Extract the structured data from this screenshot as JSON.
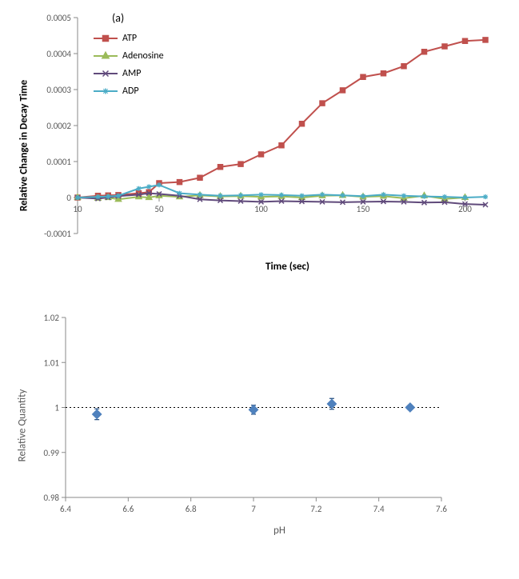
{
  "chart_a": {
    "type": "line",
    "panel_label": "(a)",
    "ylabel": "Relative Change in Decay Time",
    "xlabel": "Time (sec)",
    "label_fontsize": 13,
    "label_fontweight": "bold",
    "xlim": [
      10,
      210
    ],
    "ylim": [
      -0.0001,
      0.0005
    ],
    "xticks": [
      10,
      50,
      100,
      150,
      200
    ],
    "yticks": [
      -0.0001,
      0,
      0.0001,
      0.0002,
      0.0003,
      0.0004,
      0.0005
    ],
    "background_color": "#ffffff",
    "axis_color": "#8a8a8a",
    "text_color": "#595959",
    "tick_fontsize": 11,
    "line_width": 2,
    "marker_size": 6,
    "series": [
      {
        "name": "ATP",
        "color": "#c0504d",
        "marker": "square",
        "x": [
          10,
          20,
          25,
          30,
          40,
          45,
          50,
          60,
          70,
          80,
          90,
          100,
          110,
          120,
          130,
          140,
          150,
          160,
          170,
          180,
          190,
          200,
          210
        ],
        "y": [
          0,
          5e-06,
          6e-06,
          7e-06,
          1.2e-05,
          1.5e-05,
          4e-05,
          4.3e-05,
          5.5e-05,
          8.5e-05,
          9.3e-05,
          0.00012,
          0.000145,
          0.000205,
          0.000262,
          0.000298,
          0.000335,
          0.000345,
          0.000365,
          0.000405,
          0.00042,
          0.000435,
          0.000438
        ]
      },
      {
        "name": "Adenosine",
        "color": "#9bbb59",
        "marker": "triangle",
        "x": [
          10,
          20,
          25,
          30,
          40,
          45,
          50,
          60,
          70,
          80,
          90,
          100,
          110,
          120,
          130,
          140,
          150,
          160,
          170,
          180,
          190,
          200
        ],
        "y": [
          0,
          -2e-06,
          0,
          -5e-06,
          2e-06,
          0,
          5e-06,
          2e-06,
          6e-06,
          3e-06,
          4e-06,
          2e-06,
          3e-06,
          0,
          5e-06,
          6e-06,
          2e-06,
          4e-06,
          -2e-06,
          5e-06,
          -4e-06,
          0
        ]
      },
      {
        "name": "AMP",
        "color": "#604a7b",
        "marker": "x",
        "x": [
          10,
          20,
          25,
          30,
          40,
          45,
          50,
          60,
          70,
          80,
          90,
          100,
          110,
          120,
          130,
          140,
          150,
          160,
          170,
          180,
          190,
          200,
          210
        ],
        "y": [
          0,
          -3e-06,
          0,
          4e-06,
          8e-06,
          1.2e-05,
          1e-05,
          5e-06,
          -5e-06,
          -8e-06,
          -1e-05,
          -1.2e-05,
          -1e-05,
          -1.1e-05,
          -1.2e-05,
          -1.3e-05,
          -1.2e-05,
          -1.1e-05,
          -1.2e-05,
          -1.4e-05,
          -1.3e-05,
          -1.8e-05,
          -2e-05
        ]
      },
      {
        "name": "ADP",
        "color": "#4bacc6",
        "marker": "star",
        "x": [
          10,
          20,
          25,
          30,
          40,
          45,
          50,
          60,
          70,
          80,
          90,
          100,
          110,
          120,
          130,
          140,
          150,
          160,
          170,
          180,
          190,
          200,
          210
        ],
        "y": [
          0,
          2e-06,
          3e-06,
          5e-06,
          2.5e-05,
          3e-05,
          3.5e-05,
          1.2e-05,
          8e-06,
          5e-06,
          6e-06,
          8e-06,
          7e-06,
          5e-06,
          8e-06,
          6e-06,
          4e-06,
          8e-06,
          5e-06,
          3e-06,
          2e-06,
          0,
          2e-06
        ]
      }
    ],
    "legend": {
      "position": "top-left-inside",
      "items": [
        "ATP",
        "Adenosine",
        "AMP",
        "ADP"
      ]
    }
  },
  "chart_b": {
    "type": "scatter",
    "ylabel": "Relative Quantity",
    "xlabel": "pH",
    "label_fontsize": 13,
    "xlim": [
      6.4,
      7.6
    ],
    "ylim": [
      0.98,
      1.02
    ],
    "xticks": [
      6.4,
      6.6,
      6.8,
      7,
      7.2,
      7.4,
      7.6
    ],
    "yticks": [
      0.98,
      0.99,
      1,
      1.01,
      1.02
    ],
    "background_color": "#ffffff",
    "axis_color": "#8a8a8a",
    "text_color": "#595959",
    "tick_fontsize": 11,
    "marker_color": "#4f81bd",
    "marker_size": 8,
    "marker": "diamond",
    "errorbar_color": "#1f497d",
    "refline_y": 1.0,
    "refline_style": "dotted",
    "refline_color": "#000000",
    "points": [
      {
        "x": 6.5,
        "y": 0.9985,
        "err": 0.0012
      },
      {
        "x": 7.0,
        "y": 0.9995,
        "err": 0.001
      },
      {
        "x": 7.25,
        "y": 1.0008,
        "err": 0.0012
      },
      {
        "x": 7.5,
        "y": 1.0,
        "err": 0.0005
      }
    ]
  }
}
